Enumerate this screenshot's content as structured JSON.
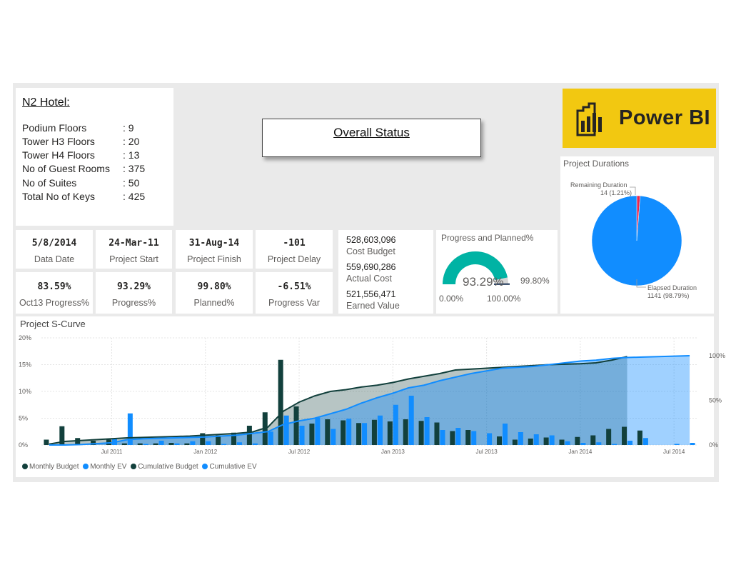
{
  "hotel": {
    "title": "N2 Hotel:",
    "rows": [
      {
        "label": "Podium Floors",
        "value": ": 9"
      },
      {
        "label": "Tower H3 Floors",
        "value": ": 20"
      },
      {
        "label": "Tower H4 Floors",
        "value": ": 13"
      },
      {
        "label": "No of Guest Rooms",
        "value": ": 375"
      },
      {
        "label": "No of Suites",
        "value": ": 50"
      },
      {
        "label": "Total No of Keys",
        "value": ": 425"
      }
    ]
  },
  "overall_status": "Overall Status",
  "logo_text": "Power BI",
  "kpis": [
    {
      "value": "5/8/2014",
      "caption": "Data Date"
    },
    {
      "value": "24-Mar-11",
      "caption": "Project Start"
    },
    {
      "value": "31-Aug-14",
      "caption": "Project Finish"
    },
    {
      "value": "-101",
      "caption": "Project Delay"
    },
    {
      "value": "83.59%",
      "caption": "Oct13 Progress%"
    },
    {
      "value": "93.29%",
      "caption": "Progress%"
    },
    {
      "value": "99.80%",
      "caption": "Planned%"
    },
    {
      "value": "-6.51%",
      "caption": "Progress Var"
    }
  ],
  "costs": [
    {
      "value": "528,603,096",
      "caption": "Cost Budget"
    },
    {
      "value": "559,690,286",
      "caption": "Actual Cost"
    },
    {
      "value": "521,556,471",
      "caption": "Earned Value"
    }
  ],
  "gauge": {
    "title": "Progress and Planned%",
    "value": 93.29,
    "value_label": "93.29%",
    "target": 99.8,
    "target_label": "99.80%",
    "min_label": "0.00%",
    "max_label": "100.00%",
    "fill_color": "#00b3a4",
    "bg_color": "#d6d6d6",
    "target_color": "#1d3557"
  },
  "durations": {
    "title": "Project Durations",
    "slices": [
      {
        "label": "Remaining Duration",
        "detail": "14 (1.21%)",
        "value": 14,
        "color": "#e8254f"
      },
      {
        "label": "Elapsed Duration",
        "detail": "1141 (98.79%)",
        "value": 1141,
        "color": "#118dff"
      }
    ]
  },
  "scurve_title": "Project S-Curve",
  "chart_data": [
    {
      "type": "pie",
      "title": "Project Durations",
      "categories": [
        "Remaining Duration",
        "Elapsed Duration"
      ],
      "values": [
        14,
        1141
      ],
      "percent": [
        1.21,
        98.79
      ],
      "legend": "none"
    },
    {
      "type": "bar",
      "combo": "bar+area",
      "title": "Project S-Curve",
      "x_start": "2011-03",
      "x_step": "month",
      "x_count": 42,
      "x_ticks": [
        "Jul 2011",
        "Jan 2012",
        "Jul 2012",
        "Jan 2013",
        "Jul 2013",
        "Jan 2014",
        "Jul 2014"
      ],
      "y_ticks": [
        "0%",
        "5%",
        "10%",
        "15%",
        "20%"
      ],
      "y2_ticks": [
        "0%",
        "50%",
        "100%"
      ],
      "ylim": [
        0,
        20
      ],
      "y2lim": [
        0,
        120
      ],
      "legend_position": "bottom-left",
      "series": [
        {
          "name": "Monthly Budget",
          "axis": "left",
          "color": "#12403c",
          "values": [
            1.0,
            3.5,
            1.3,
            0.8,
            1.0,
            0.3,
            0.3,
            0.3,
            0.4,
            0.3,
            2.2,
            1.8,
            2.3,
            3.6,
            6.1,
            15.9,
            7.2,
            4.0,
            4.8,
            4.6,
            4.1,
            4.7,
            4.4,
            4.8,
            4.5,
            4.2,
            2.6,
            2.8,
            0,
            1.6,
            1.0,
            1.2,
            1.4,
            1.0,
            1.5,
            1.8,
            3.0,
            3.4,
            2.7,
            0,
            0,
            0
          ]
        },
        {
          "name": "Monthly EV",
          "axis": "left",
          "color": "#118dff",
          "values": [
            0,
            0,
            0,
            0,
            1.2,
            5.9,
            0.2,
            0.8,
            0.3,
            0.7,
            0.7,
            0.2,
            0.5,
            0.3,
            2.5,
            5.5,
            3.6,
            5.1,
            3.0,
            4.9,
            4.1,
            5.5,
            7.5,
            9.2,
            5.2,
            2.8,
            3.2,
            2.6,
            2.2,
            4.0,
            2.4,
            2.0,
            1.8,
            0.7,
            0.4,
            0.5,
            0.2,
            0.8,
            1.3,
            0,
            0.2,
            0.4
          ]
        },
        {
          "name": "Cumulative Budget",
          "axis": "right",
          "color": "#12403c",
          "values": [
            1,
            4,
            5,
            6,
            7,
            8,
            8.5,
            9,
            9.5,
            10,
            11,
            12,
            13,
            14.5,
            20,
            38,
            48,
            55,
            60,
            62,
            65,
            67,
            70,
            74,
            77,
            80,
            84,
            85,
            86,
            87,
            88,
            89,
            90,
            90.5,
            91,
            92,
            95,
            99,
            100,
            100,
            100,
            100
          ]
        },
        {
          "name": "Cumulative EV",
          "axis": "right",
          "color": "#118dff",
          "values": [
            0,
            0,
            0.5,
            1.5,
            2.5,
            6,
            7,
            7.5,
            8,
            8.5,
            9,
            10,
            11,
            13,
            15,
            23,
            27,
            30,
            35,
            40,
            47,
            53,
            58,
            64,
            67,
            72,
            76,
            80,
            83,
            86,
            87,
            88,
            90,
            92,
            94,
            95,
            97,
            98,
            98.5,
            99,
            99.5,
            100
          ]
        }
      ]
    }
  ]
}
